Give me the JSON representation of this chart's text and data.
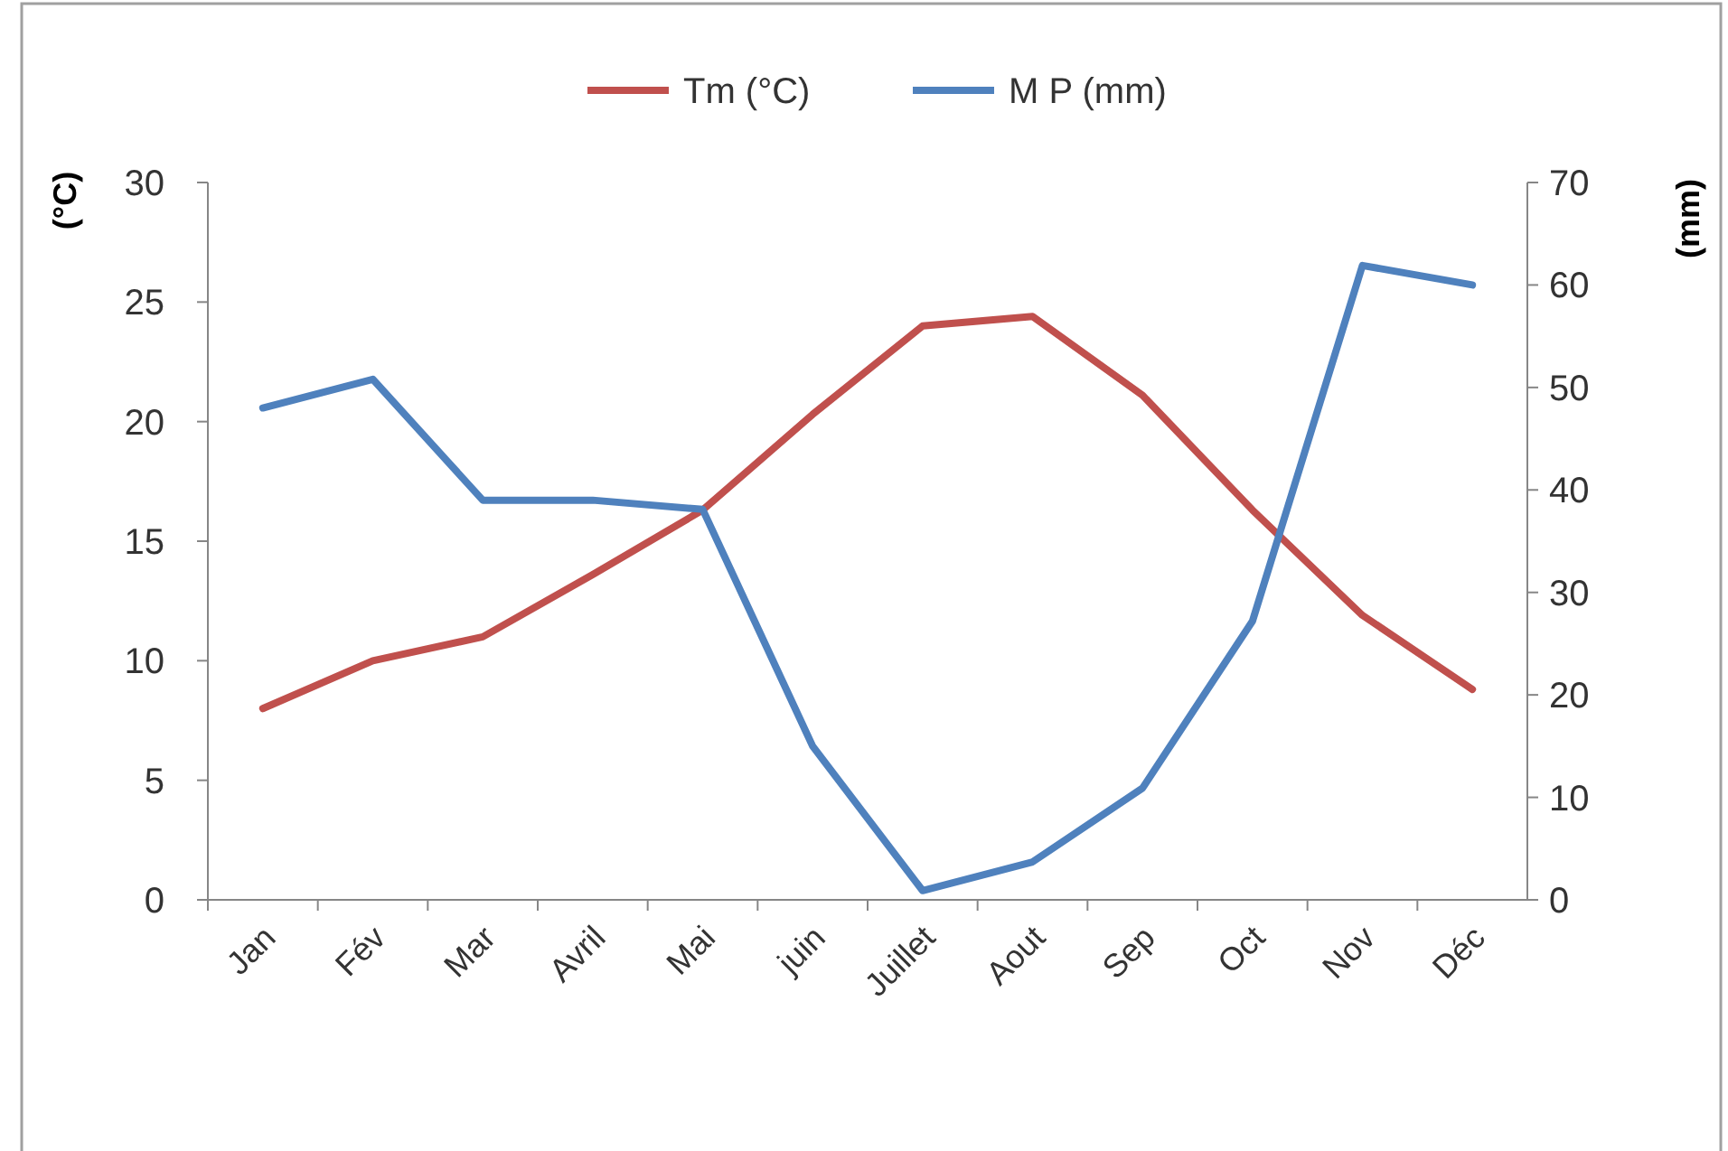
{
  "chart_data": {
    "type": "line",
    "ylabel": "(°C)",
    "y2label": "(mm)",
    "categories": [
      "Jan",
      "Fév",
      "Mar",
      "Avril",
      "Mai",
      "juin",
      "Juillet",
      "Aout",
      "Sep",
      "Oct",
      "Nov",
      "Déc"
    ],
    "series": [
      {
        "name": "Tm (°C)",
        "color": "#c0504d",
        "values": [
          8.0,
          10.0,
          11.0,
          13.6,
          16.3,
          20.3,
          24.0,
          24.4,
          21.1,
          16.3,
          11.9,
          8.8
        ]
      },
      {
        "name": "M P (mm)",
        "color": "#4f81bd",
        "axis": "y2",
        "values": [
          48,
          50.8,
          39,
          39,
          38.1,
          15,
          0.9,
          3.7,
          10.9,
          27.2,
          61.9,
          60
        ]
      }
    ],
    "ylim": [
      0,
      30
    ],
    "yticks": [
      0,
      5,
      10,
      15,
      20,
      25,
      30
    ],
    "y2lim": [
      0,
      70
    ],
    "y2ticks": [
      0,
      10,
      20,
      30,
      40,
      50,
      60,
      70
    ],
    "grid": false,
    "legend": "top",
    "marker": "none",
    "line_style": "solid"
  }
}
